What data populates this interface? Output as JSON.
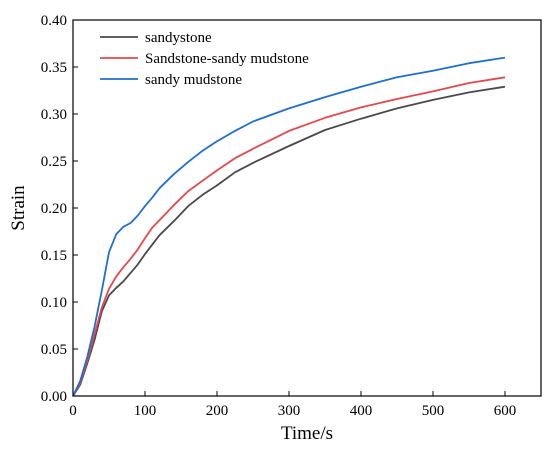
{
  "chart_data": {
    "type": "line",
    "title": "",
    "xlabel": "Time/s",
    "ylabel": "Strain",
    "xlim": [
      0,
      650
    ],
    "ylim": [
      0,
      0.4
    ],
    "xticks": [
      0,
      100,
      200,
      300,
      400,
      500,
      600
    ],
    "yticks": [
      0.0,
      0.05,
      0.1,
      0.15,
      0.2,
      0.25,
      0.3,
      0.35,
      0.4
    ],
    "xtick_labels": [
      "0",
      "100",
      "200",
      "300",
      "400",
      "500",
      "600"
    ],
    "ytick_labels": [
      "0.00",
      "0.05",
      "0.10",
      "0.15",
      "0.20",
      "0.25",
      "0.30",
      "0.35",
      "0.40"
    ],
    "grid": false,
    "legend_position": "top-left",
    "series": [
      {
        "name": "sandystone",
        "color": "#4a4a4a",
        "x": [
          0,
          10,
          20,
          30,
          40,
          50,
          60,
          70,
          80,
          90,
          100,
          110,
          120,
          140,
          160,
          180,
          200,
          225,
          250,
          300,
          350,
          400,
          450,
          500,
          550,
          600
        ],
        "y": [
          0,
          0.012,
          0.035,
          0.06,
          0.09,
          0.107,
          0.115,
          0.122,
          0.131,
          0.14,
          0.151,
          0.161,
          0.171,
          0.186,
          0.202,
          0.214,
          0.224,
          0.238,
          0.248,
          0.266,
          0.283,
          0.295,
          0.306,
          0.315,
          0.323,
          0.329
        ]
      },
      {
        "name": "Sandstone-sandy mudstone",
        "color": "#e8474a",
        "x": [
          0,
          10,
          20,
          30,
          40,
          50,
          60,
          70,
          80,
          90,
          100,
          110,
          120,
          140,
          160,
          180,
          200,
          225,
          250,
          300,
          350,
          400,
          450,
          500,
          550,
          600
        ],
        "y": [
          0,
          0.014,
          0.038,
          0.066,
          0.094,
          0.114,
          0.127,
          0.137,
          0.146,
          0.156,
          0.168,
          0.179,
          0.187,
          0.203,
          0.218,
          0.229,
          0.24,
          0.253,
          0.263,
          0.282,
          0.296,
          0.307,
          0.316,
          0.324,
          0.333,
          0.339
        ]
      },
      {
        "name": "sandy mudstone",
        "color": "#1f6fd1",
        "x": [
          0,
          10,
          20,
          30,
          40,
          50,
          60,
          70,
          80,
          90,
          100,
          110,
          120,
          140,
          160,
          180,
          200,
          225,
          250,
          300,
          350,
          400,
          450,
          500,
          550,
          600
        ],
        "y": [
          0,
          0.016,
          0.042,
          0.074,
          0.112,
          0.153,
          0.172,
          0.18,
          0.184,
          0.192,
          0.202,
          0.211,
          0.221,
          0.236,
          0.249,
          0.261,
          0.271,
          0.282,
          0.292,
          0.306,
          0.318,
          0.329,
          0.339,
          0.346,
          0.354,
          0.36
        ]
      }
    ]
  }
}
